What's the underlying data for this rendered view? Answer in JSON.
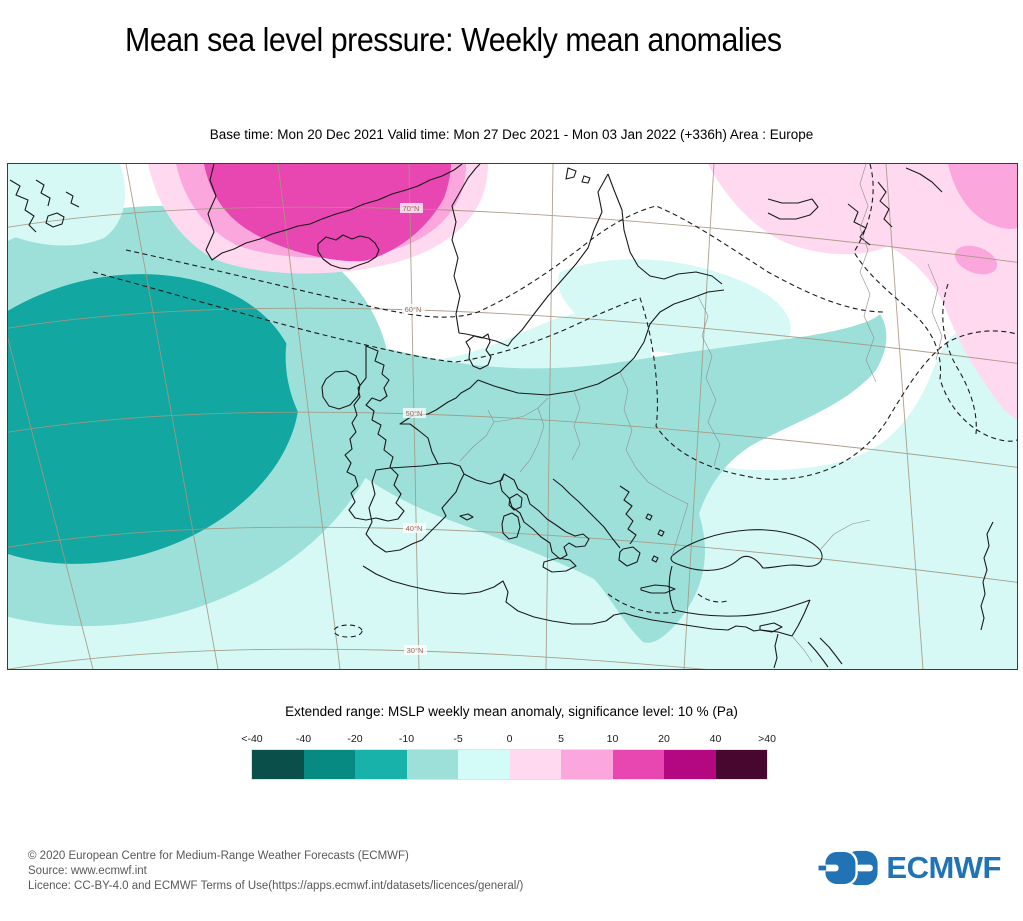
{
  "header": {
    "title": "Mean sea level pressure: Weekly mean anomalies",
    "subtitle": "Base time: Mon 20 Dec 2021 Valid time: Mon 27 Dec 2021 - Mon 03 Jan 2022 (+336h) Area : Europe"
  },
  "map": {
    "area_label": "Europe",
    "latitude_labels": [
      "70°N",
      "60°N",
      "50°N",
      "40°N",
      "30°N"
    ],
    "regions": {
      "strong_negative_anomaly": "central North Atlantic (teal, below -20 Pa band)",
      "strong_positive_anomaly": "Greenland / Iceland (magenta, above +20 Pa band)",
      "weak_positive_anomaly": "north-west Russia and eastern map edge (pink, +5 to +20)",
      "weak_negative_anomaly": "most of Europe and Mediterranean (pale cyan, -5 to 0)"
    }
  },
  "legend": {
    "title": "Extended range: MSLP weekly mean anomaly, significance level: 10 % (Pa)",
    "units": "Pa",
    "tick_labels": [
      "<-40",
      "-40",
      "-20",
      "-10",
      "-5",
      "0",
      "5",
      "10",
      "20",
      "40",
      ">40"
    ],
    "colors": [
      "#0a4f4a",
      "#068a82",
      "#18b2aa",
      "#9de0da",
      "#d3fbf7",
      "#ffd9f0",
      "#fba7de",
      "#e846b0",
      "#b3087f",
      "#470830"
    ]
  },
  "footer": {
    "line1": "© 2020 European Centre for Medium-Range Weather Forecasts (ECMWF)",
    "line2": "Source: www.ecmwf.int",
    "line3": "Licence: CC-BY-4.0 and ECMWF Terms of Use(https://apps.ecmwf.int/datasets/licences/general/)",
    "logo_text": "ECMWF",
    "logo_color": "#2173b6"
  }
}
